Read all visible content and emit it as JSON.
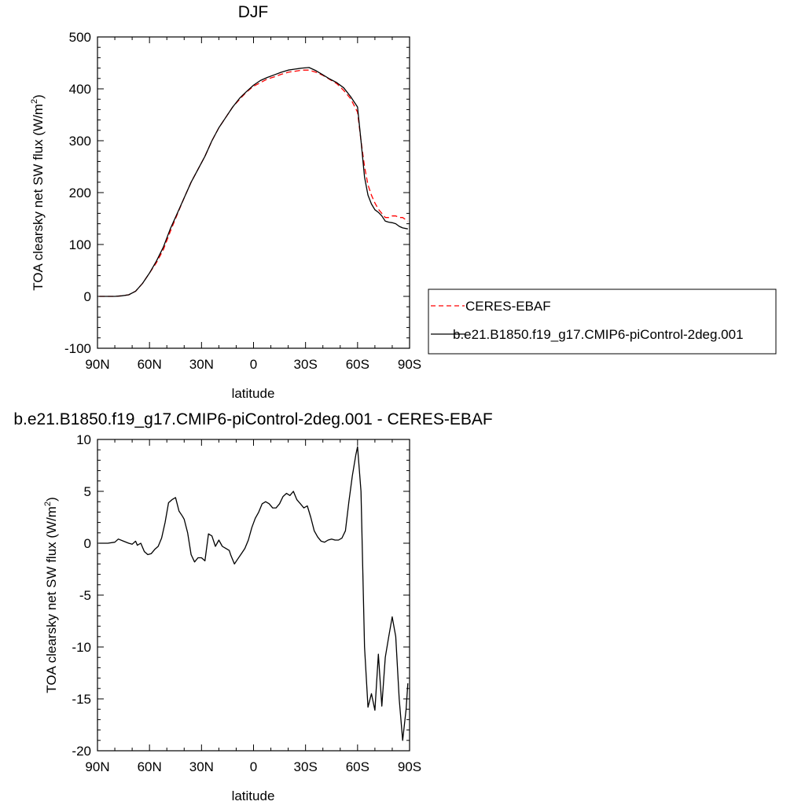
{
  "chart_data": [
    {
      "type": "line",
      "title": "DJF",
      "xlabel": "latitude",
      "ylabel": "TOA clearsky net SW flux (W/m",
      "ylabel_sup": "2",
      "ylabel_end": ")",
      "xlim": [
        -90,
        90
      ],
      "ylim": [
        -100,
        500
      ],
      "x_ticks": [
        -90,
        -60,
        -30,
        0,
        30,
        60,
        90
      ],
      "x_tick_labels": [
        "90N",
        "60N",
        "30N",
        "0",
        "30S",
        "60S",
        "90S"
      ],
      "y_ticks": [
        -100,
        0,
        100,
        200,
        300,
        400,
        500
      ],
      "y_tick_labels": [
        "-100",
        "0",
        "100",
        "200",
        "300",
        "400",
        "500"
      ],
      "legend_position": "right",
      "series": [
        {
          "name": "CERES-EBAF",
          "color": "#ff0000",
          "dash": "dashed",
          "x": [
            -89,
            -85,
            -80,
            -76,
            -72,
            -68,
            -64,
            -60,
            -56,
            -52,
            -48,
            -44,
            -40,
            -36,
            -32,
            -28,
            -24,
            -20,
            -16,
            -12,
            -8,
            -4,
            0,
            4,
            8,
            12,
            16,
            20,
            24,
            28,
            32,
            36,
            40,
            44,
            48,
            52,
            56,
            60,
            62,
            64,
            66,
            68,
            70,
            72,
            74,
            76,
            78,
            80,
            82,
            84,
            86,
            89
          ],
          "y": [
            0,
            0,
            0,
            1,
            3,
            10,
            25,
            45,
            65,
            90,
            125,
            158,
            190,
            220,
            245,
            270,
            300,
            325,
            345,
            365,
            380,
            394,
            405,
            412,
            419,
            423,
            428,
            432,
            434,
            436,
            436,
            432,
            426,
            418,
            410,
            397,
            381,
            355,
            300,
            250,
            215,
            195,
            180,
            168,
            160,
            152,
            152,
            155,
            155,
            152,
            152,
            145
          ]
        },
        {
          "name": "b.e21.B1850.f19_g17.CMIP6-piControl-2deg.001",
          "color": "#000000",
          "dash": "solid",
          "x": [
            -89,
            -85,
            -80,
            -76,
            -72,
            -68,
            -64,
            -60,
            -56,
            -52,
            -48,
            -44,
            -40,
            -36,
            -32,
            -28,
            -24,
            -20,
            -16,
            -12,
            -8,
            -4,
            0,
            4,
            8,
            12,
            16,
            20,
            24,
            28,
            32,
            36,
            40,
            44,
            48,
            52,
            56,
            60,
            62,
            64,
            66,
            68,
            70,
            72,
            74,
            76,
            78,
            80,
            82,
            84,
            86,
            89
          ],
          "y": [
            0,
            0,
            0,
            1,
            3,
            10,
            25,
            45,
            68,
            95,
            130,
            160,
            190,
            220,
            245,
            270,
            300,
            325,
            345,
            365,
            382,
            395,
            407,
            416,
            422,
            427,
            432,
            436,
            438,
            440,
            441,
            435,
            427,
            419,
            412,
            402,
            385,
            365,
            300,
            230,
            195,
            178,
            167,
            162,
            155,
            145,
            143,
            142,
            140,
            135,
            132,
            130
          ]
        }
      ]
    },
    {
      "type": "line",
      "title": "b.e21.B1850.f19_g17.CMIP6-piControl-2deg.001 - CERES-EBAF",
      "xlabel": "latitude",
      "ylabel": "TOA clearsky net SW flux (W/m",
      "ylabel_sup": "2",
      "ylabel_end": ")",
      "xlim": [
        -90,
        90
      ],
      "ylim": [
        -20,
        10
      ],
      "x_ticks": [
        -90,
        -60,
        -30,
        0,
        30,
        60,
        90
      ],
      "x_tick_labels": [
        "90N",
        "60N",
        "30N",
        "0",
        "30S",
        "60S",
        "90S"
      ],
      "y_ticks": [
        -20,
        -15,
        -10,
        -5,
        0,
        5,
        10
      ],
      "y_tick_labels": [
        "-20",
        "-15",
        "-10",
        "-5",
        "0",
        "5",
        "10"
      ],
      "series": [
        {
          "color": "#000000",
          "dash": "solid",
          "x": [
            -89,
            -84,
            -80,
            -78,
            -75,
            -72,
            -70,
            -68,
            -67,
            -65,
            -63,
            -61,
            -59,
            -57,
            -55,
            -53,
            -51,
            -49,
            -47,
            -45,
            -43,
            -41,
            -40,
            -38,
            -36,
            -34,
            -32,
            -30,
            -28,
            -26,
            -24,
            -22,
            -20,
            -18,
            -16,
            -14,
            -13,
            -11,
            -9,
            -7,
            -5,
            -3,
            -1,
            1,
            3,
            5,
            7,
            9,
            11,
            13,
            15,
            17,
            19,
            21,
            23,
            25,
            27,
            29,
            31,
            33,
            35,
            37,
            39,
            41,
            43,
            45,
            47,
            49,
            51,
            53,
            55,
            57,
            59,
            60,
            62,
            64,
            66,
            68,
            70,
            72,
            74,
            76,
            78,
            80,
            82,
            84,
            86,
            88,
            89
          ],
          "y": [
            0,
            0,
            0.1,
            0.4,
            0.2,
            0,
            -0.1,
            0.2,
            -0.2,
            0,
            -0.8,
            -1.1,
            -1.0,
            -0.6,
            -0.3,
            0.5,
            2.0,
            3.9,
            4.2,
            4.4,
            3.1,
            2.6,
            2.3,
            1.0,
            -1.1,
            -1.8,
            -1.4,
            -1.4,
            -1.7,
            0.9,
            0.7,
            -0.3,
            0.3,
            -0.3,
            -0.5,
            -0.7,
            -1.2,
            -2.0,
            -1.5,
            -1.0,
            -0.5,
            0.3,
            1.5,
            2.4,
            3.0,
            3.8,
            4.0,
            3.8,
            3.4,
            3.4,
            3.8,
            4.5,
            4.8,
            4.6,
            5.0,
            4.2,
            3.8,
            3.4,
            3.6,
            2.5,
            1.2,
            0.6,
            0.2,
            0.1,
            0.3,
            0.4,
            0.3,
            0.3,
            0.5,
            1.2,
            4.0,
            6.5,
            8.5,
            9.3,
            5.0,
            -10.0,
            -15.8,
            -14.5,
            -16.1,
            -10.7,
            -15.7,
            -11.0,
            -9.0,
            -7.1,
            -9.0,
            -15.0,
            -19.0,
            -16.0,
            -13.5
          ]
        }
      ]
    }
  ]
}
